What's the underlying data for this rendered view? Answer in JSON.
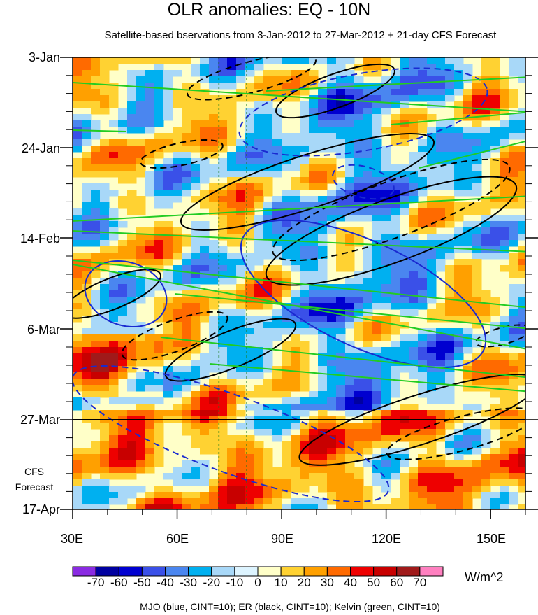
{
  "chart_data": {
    "type": "heatmap",
    "title": "OLR anomalies: EQ - 10N",
    "subtitle": "Satellite-based bservations from 3-Jan-2012 to 27-Mar-2012 + 21-day CFS Forecast",
    "x_axis": {
      "ticks": [
        "30E",
        "60E",
        "90E",
        "120E",
        "150E"
      ],
      "tick_values": [
        30,
        60,
        90,
        120,
        150
      ],
      "range": [
        30,
        160
      ]
    },
    "y_axis": {
      "ticks": [
        "3-Jan",
        "24-Jan",
        "14-Feb",
        "6-Mar",
        "27-Mar",
        "17-Apr"
      ],
      "start_date": "3-Jan",
      "end_date": "17-Apr",
      "observations_end": "27-Mar",
      "forecast_label_line1": "CFS",
      "forecast_label_line2": "Forecast"
    },
    "colorbar": {
      "labels": [
        "-70",
        "-60",
        "-50",
        "-40",
        "-30",
        "-20",
        "-10",
        "0",
        "10",
        "20",
        "30",
        "40",
        "50",
        "60",
        "70"
      ],
      "colors": [
        "#8a2be2",
        "#0000a0",
        "#0000d0",
        "#3a50e8",
        "#4a86f0",
        "#00b0f0",
        "#a8d8f8",
        "#ddf4ff",
        "#ffffc8",
        "#ffd232",
        "#ffa000",
        "#ff6a00",
        "#ee0000",
        "#c80000",
        "#a01a1a",
        "#ff80c0"
      ],
      "units": "W/m^2"
    },
    "reference_lines_lon": [
      72,
      80
    ],
    "contour_caption": "MJO (blue, CINT=10); ER (black, CINT=10); Kelvin (green, CINT=10)",
    "grid": false
  }
}
